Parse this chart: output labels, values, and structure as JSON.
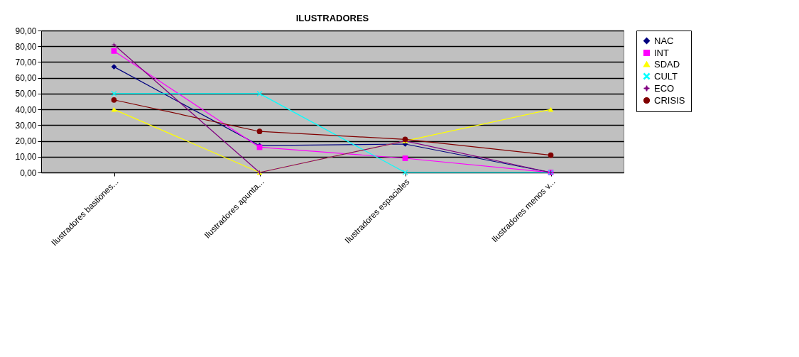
{
  "chart_data": {
    "type": "line",
    "title": "ILUSTRADORES",
    "categories": [
      "Ilustradores bastiones...",
      "Ilustradores apunta...",
      "Ilustradores espaciales",
      "Ilustradores menos v..."
    ],
    "series": [
      {
        "name": "NAC",
        "color": "#000080",
        "marker": "diamond",
        "values": [
          67,
          17,
          18,
          0
        ]
      },
      {
        "name": "INT",
        "color": "#ff00ff",
        "marker": "square",
        "values": [
          77,
          16,
          9,
          0
        ]
      },
      {
        "name": "SDAD",
        "color": "#ffff00",
        "marker": "triangle",
        "values": [
          40,
          0,
          20,
          40
        ]
      },
      {
        "name": "CULT",
        "color": "#00ffff",
        "marker": "cross",
        "values": [
          50,
          50,
          0,
          0
        ]
      },
      {
        "name": "ECO",
        "color": "#800080",
        "marker": "star",
        "values": [
          81,
          0,
          20,
          0
        ]
      },
      {
        "name": "CRISIS",
        "color": "#800000",
        "marker": "circle",
        "values": [
          46,
          26,
          21,
          11
        ]
      }
    ],
    "ylim": [
      0,
      90
    ],
    "yticks": [
      {
        "value": 0,
        "label": "0,00"
      },
      {
        "value": 10,
        "label": "10,00"
      },
      {
        "value": 20,
        "label": "20,00"
      },
      {
        "value": 30,
        "label": "30,00"
      },
      {
        "value": 40,
        "label": "40,00"
      },
      {
        "value": 50,
        "label": "50,00"
      },
      {
        "value": 60,
        "label": "60,00"
      },
      {
        "value": 70,
        "label": "70,00"
      },
      {
        "value": 80,
        "label": "80,00"
      },
      {
        "value": 90,
        "label": "90,00"
      }
    ],
    "grid": "y",
    "legend": "right",
    "line_style": "solid"
  }
}
